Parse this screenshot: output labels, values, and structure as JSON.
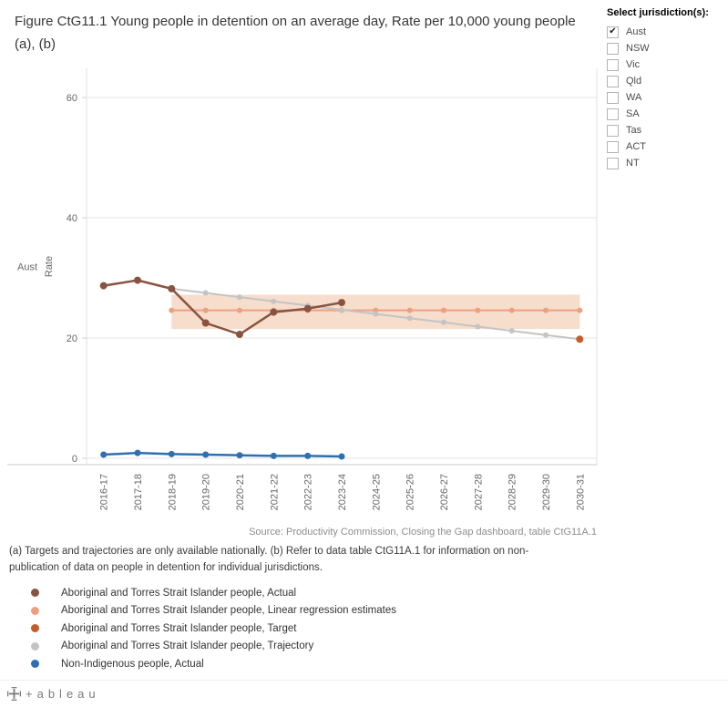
{
  "title": "Figure CtG11.1 Young people in detention on an average day, Rate per 10,000 young people (a), (b)",
  "filter": {
    "label": "Select jurisdiction(s):",
    "options": [
      {
        "label": "Aust",
        "checked": true
      },
      {
        "label": "NSW",
        "checked": false
      },
      {
        "label": "Vic",
        "checked": false
      },
      {
        "label": "Qld",
        "checked": false
      },
      {
        "label": "WA",
        "checked": false
      },
      {
        "label": "SA",
        "checked": false
      },
      {
        "label": "Tas",
        "checked": false
      },
      {
        "label": "ACT",
        "checked": false
      },
      {
        "label": "NT",
        "checked": false
      }
    ]
  },
  "chart_data": {
    "type": "line",
    "row_label": "Aust",
    "ylabel": "Rate",
    "ylim": [
      -1,
      65
    ],
    "yticks": [
      0,
      20,
      40,
      60
    ],
    "grid": true,
    "categories": [
      "2016-17",
      "2017-18",
      "2018-19",
      "2019-20",
      "2020-21",
      "2021-22",
      "2022-23",
      "2023-24",
      "2024-25",
      "2025-26",
      "2026-27",
      "2027-28",
      "2028-29",
      "2029-30",
      "2030-31"
    ],
    "series": [
      {
        "key": "indigenous-actual",
        "name": "Aboriginal and Torres Strait Islander people, Actual",
        "color": "#8a5340",
        "marker_radius": 4,
        "line_width": 2.5,
        "z": 3,
        "values": [
          28.7,
          29.6,
          28.2,
          22.5,
          20.6,
          24.3,
          24.9,
          25.9,
          null,
          null,
          null,
          null,
          null,
          null,
          null
        ]
      },
      {
        "key": "indigenous-linear-regression",
        "name": "Aboriginal and Torres Strait Islander people, Linear regression estimates",
        "color": "#eda080",
        "marker_radius": 3,
        "line_width": 2,
        "z": 1,
        "values": [
          null,
          null,
          24.6,
          24.6,
          24.6,
          24.6,
          24.6,
          24.6,
          24.6,
          24.6,
          24.6,
          24.6,
          24.6,
          24.6,
          24.6
        ],
        "band": {
          "low": 21.5,
          "high": 27.2,
          "fill": "#f7ddcb"
        }
      },
      {
        "key": "indigenous-target",
        "name": "Aboriginal and Torres Strait Islander people, Target",
        "color": "#c65d28",
        "marker_radius": 4,
        "line_width": 2,
        "z": 5,
        "values": [
          null,
          null,
          null,
          null,
          null,
          null,
          null,
          null,
          null,
          null,
          null,
          null,
          null,
          null,
          19.8
        ]
      },
      {
        "key": "indigenous-trajectory",
        "name": "Aboriginal and Torres Strait Islander people, Trajectory",
        "color": "#c4c4c4",
        "marker_radius": 3,
        "line_width": 2,
        "z": 2,
        "values": [
          null,
          null,
          28.2,
          27.5,
          26.8,
          26.1,
          25.4,
          24.7,
          24.0,
          23.3,
          22.6,
          21.9,
          21.2,
          20.5,
          19.8
        ]
      },
      {
        "key": "non-indigenous-actual",
        "name": "Non-Indigenous people, Actual",
        "color": "#2e6fb0",
        "marker_radius": 3.5,
        "line_width": 2.5,
        "z": 4,
        "values": [
          0.6,
          0.9,
          0.7,
          0.6,
          0.5,
          0.4,
          0.4,
          0.3,
          null,
          null,
          null,
          null,
          null,
          null,
          null
        ]
      }
    ]
  },
  "source": "Source: Productivity Commission, Closing the Gap dashboard, table CtG11A.1",
  "footnote": "(a) Targets and trajectories are only available nationally. (b) Refer to data table CtG11A.1 for information on non-publication of data on people in detention for individual jurisdictions.",
  "legend": [
    {
      "label": "Aboriginal and Torres Strait Islander people, Actual",
      "color": "#8a5340"
    },
    {
      "label": "Aboriginal and Torres Strait Islander people, Linear regression estimates",
      "color": "#eda080"
    },
    {
      "label": "Aboriginal and Torres Strait Islander people, Target",
      "color": "#c65d28"
    },
    {
      "label": "Aboriginal and Torres Strait Islander people, Trajectory",
      "color": "#c4c4c4"
    },
    {
      "label": "Non-Indigenous people, Actual",
      "color": "#2e6fb0"
    }
  ],
  "footer": {
    "logo": "+ableau"
  }
}
